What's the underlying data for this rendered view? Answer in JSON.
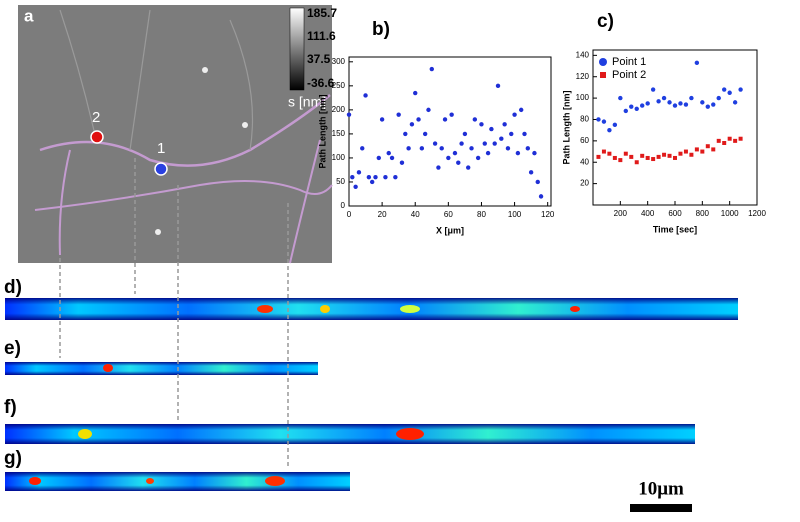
{
  "panel_a": {
    "label": "a",
    "colorbar": {
      "ticks": [
        185.7,
        111.6,
        37.5,
        -36.6
      ],
      "title": "s [nm]"
    },
    "points": [
      "1",
      "2"
    ]
  },
  "chart_data": [
    {
      "type": "scatter",
      "title": "b)",
      "xlabel": "X [μm]",
      "ylabel": "Path Length [nm]",
      "color": "#1f2fd6",
      "x": [
        0,
        2,
        4,
        6,
        8,
        10,
        12,
        14,
        16,
        18,
        20,
        22,
        24,
        26,
        28,
        30,
        32,
        34,
        36,
        38,
        40,
        42,
        44,
        46,
        48,
        50,
        52,
        54,
        56,
        58,
        60,
        62,
        64,
        66,
        68,
        70,
        72,
        74,
        76,
        78,
        80,
        82,
        84,
        86,
        88,
        90,
        92,
        94,
        96,
        98,
        100,
        102,
        104,
        106,
        108,
        110,
        112,
        114,
        116
      ],
      "values": [
        190,
        60,
        40,
        70,
        120,
        230,
        60,
        50,
        60,
        100,
        180,
        60,
        110,
        100,
        60,
        190,
        90,
        150,
        120,
        170,
        235,
        180,
        120,
        150,
        200,
        285,
        130,
        80,
        120,
        180,
        100,
        190,
        110,
        90,
        130,
        150,
        80,
        120,
        180,
        100,
        170,
        130,
        110,
        160,
        130,
        250,
        140,
        170,
        120,
        150,
        190,
        110,
        200,
        150,
        120,
        70,
        110,
        50,
        20
      ],
      "xlim": [
        0,
        122
      ],
      "ylim": [
        0,
        310
      ],
      "xticks": [
        0,
        20,
        40,
        60,
        80,
        100,
        120
      ],
      "yticks": [
        0,
        50,
        100,
        150,
        200,
        250,
        300
      ]
    },
    {
      "type": "scatter",
      "title": "c)",
      "xlabel": "Time [sec]",
      "ylabel": "Path Length [nm]",
      "legend": "upper left",
      "x": [
        40,
        80,
        120,
        160,
        200,
        240,
        280,
        320,
        360,
        400,
        440,
        480,
        520,
        560,
        600,
        640,
        680,
        720,
        760,
        800,
        840,
        880,
        920,
        960,
        1000,
        1040,
        1080
      ],
      "series": [
        {
          "name": "Point 1",
          "color": "#1f3fe0",
          "marker": "circle",
          "values": [
            80,
            78,
            70,
            75,
            100,
            88,
            92,
            90,
            93,
            95,
            108,
            97,
            100,
            96,
            93,
            95,
            94,
            100,
            133,
            96,
            92,
            94,
            100,
            108,
            105,
            96,
            108
          ]
        },
        {
          "name": "Point 2",
          "color": "#e01a1a",
          "marker": "square",
          "values": [
            45,
            50,
            48,
            44,
            42,
            48,
            45,
            40,
            46,
            44,
            43,
            45,
            47,
            46,
            44,
            48,
            50,
            47,
            52,
            50,
            55,
            52,
            60,
            58,
            62,
            60,
            62
          ]
        }
      ],
      "xlim": [
        0,
        1200
      ],
      "ylim": [
        0,
        145
      ],
      "xticks": [
        200,
        400,
        600,
        800,
        1000,
        1200
      ],
      "yticks": [
        20,
        40,
        60,
        80,
        100,
        120,
        140
      ]
    }
  ],
  "strips": [
    "d)",
    "e)",
    "f)",
    "g)"
  ],
  "scale_bar": "10μm"
}
